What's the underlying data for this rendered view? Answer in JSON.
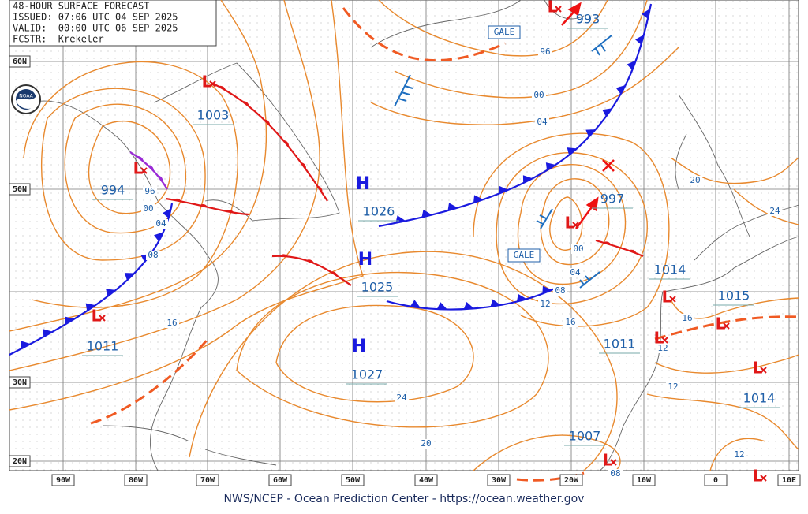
{
  "header": {
    "title": "48-HOUR SURFACE FORECAST",
    "issued": "ISSUED: 07:06 UTC 04 SEP 2025",
    "valid": "VALID:  00:00 UTC 06 SEP 2025",
    "forecaster": "FCSTR:  Krekeler"
  },
  "map": {
    "lat_labels": [
      "60N",
      "50N",
      "30N",
      "20N"
    ],
    "lon_labels": [
      "90W",
      "80W",
      "70W",
      "60W",
      "50W",
      "40W",
      "30W",
      "20W",
      "10W",
      "0",
      "10E"
    ],
    "high_symbol": "H",
    "low_symbol": "L",
    "pressure_labels": [
      "1003",
      "994",
      "1026",
      "1025",
      "1027",
      "1011",
      "993",
      "997",
      "1014",
      "1015",
      "1011",
      "1014",
      "1007"
    ],
    "isobar_labels": [
      "96",
      "00",
      "04",
      "08",
      "16",
      "96",
      "00",
      "04",
      "00",
      "04",
      "08",
      "12",
      "16",
      "20",
      "24",
      "16",
      "12",
      "12",
      "12",
      "08",
      "24",
      "20"
    ],
    "gale_labels": [
      "GALE",
      "GALE"
    ],
    "logo_text": "NOAA"
  },
  "footer": {
    "credit": "NWS/NCEP - Ocean Prediction Center - https://ocean.weather.gov"
  }
}
